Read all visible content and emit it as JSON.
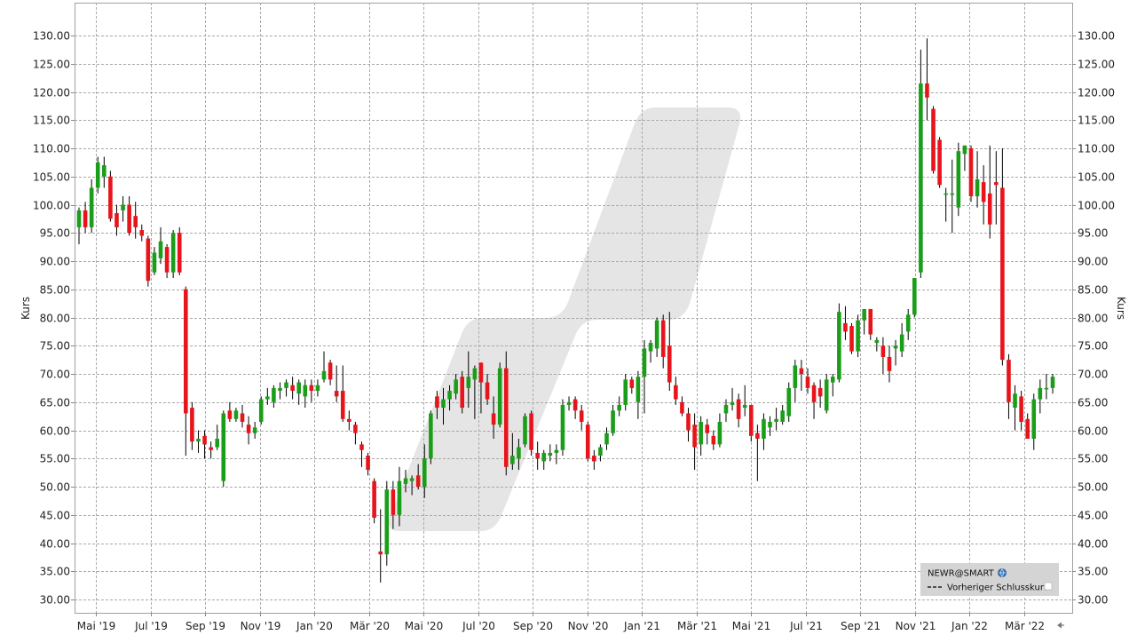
{
  "chart_data": {
    "type": "candlestick",
    "xlabel": "",
    "ylabel": "Kurs",
    "ylim": [
      27.5,
      136.0
    ],
    "y_ticks": [
      "30.00",
      "35.00",
      "40.00",
      "45.00",
      "50.00",
      "55.00",
      "60.00",
      "65.00",
      "70.00",
      "75.00",
      "80.00",
      "85.00",
      "90.00",
      "95.00",
      "100.00",
      "105.00",
      "110.00",
      "115.00",
      "120.00",
      "125.00",
      "130.00"
    ],
    "x_ticks": [
      "Mai '19",
      "Jul '19",
      "Sep '19",
      "Nov '19",
      "Jan '20",
      "Mär '20",
      "Mai '20",
      "Jul '20",
      "Sep '20",
      "Nov '20",
      "Jan '21",
      "Mär '21",
      "Mai '21",
      "Jul '21",
      "Sep '21",
      "Nov '21",
      "Jan '22",
      "Mär '22"
    ],
    "grid": true,
    "legend": "bottom-right",
    "colors": {
      "up": "#1a9e1a",
      "down": "#e8141c",
      "wick": "#000000",
      "grid": "#a9a9a9"
    },
    "legend_items": [
      {
        "label": "NEWR@SMART",
        "icon": "globe-icon"
      },
      {
        "label": "Vorheriger Schlusskurs",
        "icon": "dashed-line-icon"
      }
    ],
    "series": [
      {
        "name": "NEWR@SMART",
        "weekly_candles": [
          {
            "o": 96.0,
            "h": 99.5,
            "l": 93.0,
            "c": 99.0
          },
          {
            "o": 99.0,
            "h": 100.5,
            "l": 95.0,
            "c": 96.0
          },
          {
            "o": 96.0,
            "h": 104.5,
            "l": 95.0,
            "c": 103.0
          },
          {
            "o": 103.0,
            "h": 108.5,
            "l": 102.0,
            "c": 107.5
          },
          {
            "o": 105.0,
            "h": 108.5,
            "l": 103.0,
            "c": 107.0
          },
          {
            "o": 105.0,
            "h": 106.0,
            "l": 97.0,
            "c": 97.5
          },
          {
            "o": 98.5,
            "h": 100.0,
            "l": 94.5,
            "c": 96.0
          },
          {
            "o": 99.0,
            "h": 101.5,
            "l": 97.0,
            "c": 100.0
          },
          {
            "o": 100.0,
            "h": 101.5,
            "l": 94.5,
            "c": 95.0
          },
          {
            "o": 98.0,
            "h": 100.5,
            "l": 94.0,
            "c": 96.0
          },
          {
            "o": 95.5,
            "h": 96.5,
            "l": 93.5,
            "c": 94.5
          },
          {
            "o": 94.0,
            "h": 94.5,
            "l": 85.5,
            "c": 86.5
          },
          {
            "o": 88.0,
            "h": 92.5,
            "l": 87.5,
            "c": 91.5
          },
          {
            "o": 90.5,
            "h": 96.0,
            "l": 89.5,
            "c": 93.5
          },
          {
            "o": 92.5,
            "h": 93.0,
            "l": 87.0,
            "c": 88.0
          },
          {
            "o": 88.0,
            "h": 95.5,
            "l": 87.0,
            "c": 95.0
          },
          {
            "o": 95.0,
            "h": 96.0,
            "l": 87.5,
            "c": 88.0
          },
          {
            "o": 85.0,
            "h": 85.5,
            "l": 55.5,
            "c": 63.0
          },
          {
            "o": 64.0,
            "h": 65.0,
            "l": 56.5,
            "c": 58.0
          },
          {
            "o": 58.0,
            "h": 60.0,
            "l": 56.0,
            "c": 58.5
          },
          {
            "o": 59.0,
            "h": 60.0,
            "l": 55.0,
            "c": 57.5
          },
          {
            "o": 57.0,
            "h": 58.0,
            "l": 55.0,
            "c": 56.5
          },
          {
            "o": 57.0,
            "h": 61.0,
            "l": 56.5,
            "c": 58.5
          },
          {
            "o": 51.0,
            "h": 63.5,
            "l": 50.0,
            "c": 63.0
          },
          {
            "o": 63.5,
            "h": 65.0,
            "l": 61.5,
            "c": 62.0
          },
          {
            "o": 62.0,
            "h": 64.0,
            "l": 61.5,
            "c": 63.5
          },
          {
            "o": 63.0,
            "h": 64.5,
            "l": 60.5,
            "c": 61.5
          },
          {
            "o": 61.0,
            "h": 62.5,
            "l": 57.5,
            "c": 59.5
          },
          {
            "o": 59.5,
            "h": 61.5,
            "l": 58.5,
            "c": 60.5
          },
          {
            "o": 61.5,
            "h": 66.0,
            "l": 61.0,
            "c": 65.5
          },
          {
            "o": 65.5,
            "h": 67.5,
            "l": 64.5,
            "c": 66.0
          },
          {
            "o": 65.0,
            "h": 68.0,
            "l": 64.0,
            "c": 67.5
          },
          {
            "o": 67.0,
            "h": 68.5,
            "l": 65.5,
            "c": 67.5
          },
          {
            "o": 67.5,
            "h": 69.0,
            "l": 66.0,
            "c": 68.5
          },
          {
            "o": 68.0,
            "h": 69.5,
            "l": 65.5,
            "c": 67.0
          },
          {
            "o": 66.5,
            "h": 69.0,
            "l": 64.5,
            "c": 68.5
          },
          {
            "o": 66.0,
            "h": 69.0,
            "l": 64.0,
            "c": 68.0
          },
          {
            "o": 68.0,
            "h": 69.0,
            "l": 65.0,
            "c": 67.0
          },
          {
            "o": 67.0,
            "h": 69.0,
            "l": 66.0,
            "c": 68.0
          },
          {
            "o": 69.0,
            "h": 74.0,
            "l": 68.5,
            "c": 70.5
          },
          {
            "o": 72.0,
            "h": 72.5,
            "l": 68.0,
            "c": 69.0
          },
          {
            "o": 67.0,
            "h": 71.5,
            "l": 65.0,
            "c": 66.0
          },
          {
            "o": 67.0,
            "h": 71.5,
            "l": 61.5,
            "c": 62.0
          },
          {
            "o": 62.0,
            "h": 63.5,
            "l": 60.0,
            "c": 61.5
          },
          {
            "o": 61.0,
            "h": 61.5,
            "l": 57.5,
            "c": 59.5
          },
          {
            "o": 57.5,
            "h": 58.0,
            "l": 53.5,
            "c": 56.5
          },
          {
            "o": 55.5,
            "h": 56.0,
            "l": 52.0,
            "c": 53.0
          },
          {
            "o": 51.0,
            "h": 51.5,
            "l": 43.5,
            "c": 44.5
          },
          {
            "o": 38.5,
            "h": 46.0,
            "l": 33.0,
            "c": 38.0
          },
          {
            "o": 38.0,
            "h": 51.0,
            "l": 36.0,
            "c": 49.5
          },
          {
            "o": 49.5,
            "h": 51.0,
            "l": 42.5,
            "c": 45.0
          },
          {
            "o": 45.0,
            "h": 53.5,
            "l": 43.0,
            "c": 51.0
          },
          {
            "o": 50.5,
            "h": 53.0,
            "l": 49.0,
            "c": 51.5
          },
          {
            "o": 51.0,
            "h": 52.0,
            "l": 48.5,
            "c": 51.5
          },
          {
            "o": 52.0,
            "h": 54.0,
            "l": 49.5,
            "c": 50.0
          },
          {
            "o": 50.0,
            "h": 57.5,
            "l": 48.0,
            "c": 55.0
          },
          {
            "o": 55.0,
            "h": 63.5,
            "l": 54.0,
            "c": 63.0
          },
          {
            "o": 66.0,
            "h": 67.0,
            "l": 62.0,
            "c": 64.0
          },
          {
            "o": 64.0,
            "h": 67.5,
            "l": 61.0,
            "c": 65.5
          },
          {
            "o": 65.5,
            "h": 68.0,
            "l": 63.5,
            "c": 67.0
          },
          {
            "o": 66.5,
            "h": 70.0,
            "l": 65.5,
            "c": 69.0
          },
          {
            "o": 69.5,
            "h": 70.5,
            "l": 63.0,
            "c": 64.0
          },
          {
            "o": 67.5,
            "h": 74.0,
            "l": 64.0,
            "c": 69.5
          },
          {
            "o": 69.0,
            "h": 71.5,
            "l": 62.0,
            "c": 71.0
          },
          {
            "o": 72.0,
            "h": 72.0,
            "l": 63.0,
            "c": 68.5
          },
          {
            "o": 68.5,
            "h": 70.0,
            "l": 64.5,
            "c": 65.5
          },
          {
            "o": 63.0,
            "h": 66.0,
            "l": 58.5,
            "c": 61.0
          },
          {
            "o": 61.0,
            "h": 72.0,
            "l": 60.5,
            "c": 71.0
          },
          {
            "o": 71.0,
            "h": 74.0,
            "l": 52.0,
            "c": 53.5
          },
          {
            "o": 54.0,
            "h": 59.5,
            "l": 53.0,
            "c": 55.5
          },
          {
            "o": 55.0,
            "h": 58.5,
            "l": 53.0,
            "c": 57.0
          },
          {
            "o": 57.5,
            "h": 63.0,
            "l": 57.0,
            "c": 62.5
          },
          {
            "o": 63.0,
            "h": 63.5,
            "l": 55.5,
            "c": 56.5
          },
          {
            "o": 56.0,
            "h": 58.0,
            "l": 53.0,
            "c": 55.0
          },
          {
            "o": 54.5,
            "h": 56.5,
            "l": 53.0,
            "c": 56.0
          },
          {
            "o": 55.5,
            "h": 57.5,
            "l": 54.5,
            "c": 56.0
          },
          {
            "o": 56.0,
            "h": 57.5,
            "l": 54.0,
            "c": 56.5
          },
          {
            "o": 56.5,
            "h": 65.5,
            "l": 55.5,
            "c": 64.5
          },
          {
            "o": 64.5,
            "h": 66.0,
            "l": 63.5,
            "c": 65.0
          },
          {
            "o": 65.5,
            "h": 66.0,
            "l": 62.0,
            "c": 63.5
          },
          {
            "o": 63.5,
            "h": 64.5,
            "l": 60.0,
            "c": 61.5
          },
          {
            "o": 61.0,
            "h": 61.5,
            "l": 54.5,
            "c": 55.0
          },
          {
            "o": 55.5,
            "h": 56.5,
            "l": 53.0,
            "c": 54.5
          },
          {
            "o": 55.5,
            "h": 57.5,
            "l": 54.5,
            "c": 57.0
          },
          {
            "o": 57.5,
            "h": 60.5,
            "l": 56.5,
            "c": 59.5
          },
          {
            "o": 59.5,
            "h": 64.5,
            "l": 59.0,
            "c": 63.5
          },
          {
            "o": 63.5,
            "h": 66.0,
            "l": 62.5,
            "c": 64.5
          },
          {
            "o": 64.5,
            "h": 70.0,
            "l": 63.5,
            "c": 69.0
          },
          {
            "o": 69.0,
            "h": 69.5,
            "l": 66.5,
            "c": 67.5
          },
          {
            "o": 65.0,
            "h": 70.5,
            "l": 62.0,
            "c": 69.5
          },
          {
            "o": 69.5,
            "h": 76.0,
            "l": 63.0,
            "c": 74.5
          },
          {
            "o": 74.0,
            "h": 76.0,
            "l": 72.0,
            "c": 75.5
          },
          {
            "o": 74.5,
            "h": 80.0,
            "l": 73.0,
            "c": 79.5
          },
          {
            "o": 79.5,
            "h": 80.5,
            "l": 71.0,
            "c": 73.0
          },
          {
            "o": 75.0,
            "h": 81.0,
            "l": 67.0,
            "c": 68.5
          },
          {
            "o": 68.0,
            "h": 69.5,
            "l": 64.5,
            "c": 65.5
          },
          {
            "o": 65.0,
            "h": 66.0,
            "l": 62.5,
            "c": 63.0
          },
          {
            "o": 63.0,
            "h": 64.0,
            "l": 58.0,
            "c": 60.0
          },
          {
            "o": 61.0,
            "h": 63.0,
            "l": 53.0,
            "c": 57.0
          },
          {
            "o": 57.5,
            "h": 62.5,
            "l": 55.5,
            "c": 61.5
          },
          {
            "o": 61.0,
            "h": 62.0,
            "l": 57.5,
            "c": 59.5
          },
          {
            "o": 59.0,
            "h": 60.0,
            "l": 56.5,
            "c": 57.5
          },
          {
            "o": 57.5,
            "h": 63.0,
            "l": 57.0,
            "c": 61.5
          },
          {
            "o": 63.0,
            "h": 65.5,
            "l": 61.5,
            "c": 64.5
          },
          {
            "o": 64.5,
            "h": 67.5,
            "l": 63.5,
            "c": 65.0
          },
          {
            "o": 65.5,
            "h": 66.5,
            "l": 60.5,
            "c": 62.0
          },
          {
            "o": 64.0,
            "h": 68.0,
            "l": 62.5,
            "c": 64.5
          },
          {
            "o": 64.5,
            "h": 64.5,
            "l": 58.0,
            "c": 59.0
          },
          {
            "o": 59.5,
            "h": 61.0,
            "l": 51.0,
            "c": 58.5
          },
          {
            "o": 58.5,
            "h": 63.0,
            "l": 56.5,
            "c": 62.0
          },
          {
            "o": 60.5,
            "h": 62.5,
            "l": 59.0,
            "c": 61.5
          },
          {
            "o": 61.5,
            "h": 64.0,
            "l": 60.0,
            "c": 62.0
          },
          {
            "o": 61.5,
            "h": 64.5,
            "l": 61.0,
            "c": 63.5
          },
          {
            "o": 62.5,
            "h": 68.5,
            "l": 61.5,
            "c": 67.5
          },
          {
            "o": 67.5,
            "h": 72.5,
            "l": 65.0,
            "c": 71.5
          },
          {
            "o": 71.0,
            "h": 72.5,
            "l": 67.0,
            "c": 70.0
          },
          {
            "o": 69.5,
            "h": 71.0,
            "l": 66.5,
            "c": 67.5
          },
          {
            "o": 68.0,
            "h": 68.5,
            "l": 62.0,
            "c": 65.0
          },
          {
            "o": 67.5,
            "h": 69.0,
            "l": 64.0,
            "c": 66.0
          },
          {
            "o": 63.5,
            "h": 70.0,
            "l": 63.0,
            "c": 69.0
          },
          {
            "o": 68.5,
            "h": 70.0,
            "l": 66.0,
            "c": 69.5
          },
          {
            "o": 69.0,
            "h": 82.5,
            "l": 68.5,
            "c": 81.0
          },
          {
            "o": 79.0,
            "h": 82.0,
            "l": 76.0,
            "c": 77.5
          },
          {
            "o": 78.5,
            "h": 79.0,
            "l": 73.5,
            "c": 74.0
          },
          {
            "o": 74.0,
            "h": 80.5,
            "l": 73.0,
            "c": 79.5
          },
          {
            "o": 79.5,
            "h": 81.5,
            "l": 77.0,
            "c": 81.5
          },
          {
            "o": 81.5,
            "h": 81.5,
            "l": 76.0,
            "c": 77.0
          },
          {
            "o": 75.5,
            "h": 76.5,
            "l": 74.0,
            "c": 76.0
          },
          {
            "o": 75.0,
            "h": 76.5,
            "l": 70.0,
            "c": 73.0
          },
          {
            "o": 73.0,
            "h": 75.0,
            "l": 68.5,
            "c": 70.5
          },
          {
            "o": 74.5,
            "h": 76.0,
            "l": 71.5,
            "c": 75.0
          },
          {
            "o": 74.0,
            "h": 79.0,
            "l": 73.0,
            "c": 77.0
          },
          {
            "o": 77.5,
            "h": 81.5,
            "l": 76.0,
            "c": 80.5
          },
          {
            "o": 80.5,
            "h": 87.0,
            "l": 80.0,
            "c": 87.0
          },
          {
            "o": 88.0,
            "h": 127.5,
            "l": 87.0,
            "c": 121.5
          },
          {
            "o": 121.5,
            "h": 129.5,
            "l": 115.0,
            "c": 119.0
          },
          {
            "o": 117.0,
            "h": 117.5,
            "l": 105.5,
            "c": 106.0
          },
          {
            "o": 111.5,
            "h": 112.0,
            "l": 103.0,
            "c": 103.5
          },
          {
            "o": 102.0,
            "h": 103.0,
            "l": 97.0,
            "c": 102.0
          },
          {
            "o": 102.0,
            "h": 108.0,
            "l": 95.0,
            "c": 102.0
          },
          {
            "o": 99.5,
            "h": 111.0,
            "l": 98.0,
            "c": 109.5
          },
          {
            "o": 109.0,
            "h": 110.5,
            "l": 106.0,
            "c": 110.5
          },
          {
            "o": 110.0,
            "h": 110.5,
            "l": 100.5,
            "c": 101.5
          },
          {
            "o": 101.5,
            "h": 109.5,
            "l": 99.5,
            "c": 104.5
          },
          {
            "o": 104.0,
            "h": 107.0,
            "l": 96.5,
            "c": 100.5
          },
          {
            "o": 102.0,
            "h": 110.5,
            "l": 94.0,
            "c": 96.5
          },
          {
            "o": 104.0,
            "h": 109.5,
            "l": 96.5,
            "c": 103.5
          },
          {
            "o": 103.0,
            "h": 110.0,
            "l": 71.5,
            "c": 72.5
          },
          {
            "o": 72.5,
            "h": 73.5,
            "l": 62.0,
            "c": 65.0
          },
          {
            "o": 64.0,
            "h": 68.0,
            "l": 60.0,
            "c": 66.5
          },
          {
            "o": 66.0,
            "h": 67.0,
            "l": 60.0,
            "c": 61.5
          },
          {
            "o": 62.0,
            "h": 63.0,
            "l": 58.5,
            "c": 58.5
          },
          {
            "o": 58.5,
            "h": 66.5,
            "l": 56.5,
            "c": 65.5
          },
          {
            "o": 65.5,
            "h": 69.0,
            "l": 63.0,
            "c": 67.5
          },
          {
            "o": 67.5,
            "h": 70.0,
            "l": 65.5,
            "c": 67.5
          },
          {
            "o": 67.5,
            "h": 70.0,
            "l": 66.5,
            "c": 69.5
          }
        ]
      }
    ]
  }
}
